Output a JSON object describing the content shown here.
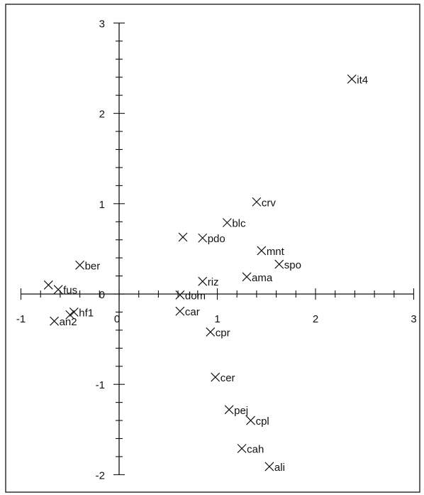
{
  "chart_data": {
    "type": "scatter",
    "title": "",
    "xlabel": "",
    "ylabel": "",
    "xlim": [
      -1,
      3
    ],
    "ylim": [
      -2,
      3
    ],
    "x_ticks": [
      "-1",
      "0",
      "1",
      "2",
      "3"
    ],
    "y_ticks": [
      "3",
      "2",
      "1",
      "0",
      "-1",
      "-2"
    ],
    "grid": false,
    "points": [
      {
        "label": "it4",
        "x": 2.37,
        "y": 2.38
      },
      {
        "label": "crv",
        "x": 1.4,
        "y": 1.02
      },
      {
        "label": "blc",
        "x": 1.1,
        "y": 0.79
      },
      {
        "label": "",
        "x": 0.65,
        "y": 0.63
      },
      {
        "label": "pdo",
        "x": 0.85,
        "y": 0.62
      },
      {
        "label": "mnt",
        "x": 1.45,
        "y": 0.48
      },
      {
        "label": "spo",
        "x": 1.63,
        "y": 0.33
      },
      {
        "label": "ber",
        "x": -0.4,
        "y": 0.32
      },
      {
        "label": "ama",
        "x": 1.3,
        "y": 0.19
      },
      {
        "label": "riz",
        "x": 0.85,
        "y": 0.14
      },
      {
        "label": "",
        "x": -0.72,
        "y": 0.1
      },
      {
        "label": "fus",
        "x": -0.62,
        "y": 0.05
      },
      {
        "label": "dom",
        "x": 0.62,
        "y": -0.01
      },
      {
        "label": "car",
        "x": 0.62,
        "y": -0.19
      },
      {
        "label": "hf1",
        "x": -0.46,
        "y": -0.2
      },
      {
        "label": "",
        "x": -0.5,
        "y": -0.23
      },
      {
        "label": "an2",
        "x": -0.66,
        "y": -0.3
      },
      {
        "label": "cpr",
        "x": 0.93,
        "y": -0.42
      },
      {
        "label": "cer",
        "x": 0.98,
        "y": -0.92
      },
      {
        "label": "pej",
        "x": 1.12,
        "y": -1.28
      },
      {
        "label": "cpl",
        "x": 1.34,
        "y": -1.4
      },
      {
        "label": "cah",
        "x": 1.25,
        "y": -1.71
      },
      {
        "label": "ali",
        "x": 1.53,
        "y": -1.91
      }
    ]
  }
}
